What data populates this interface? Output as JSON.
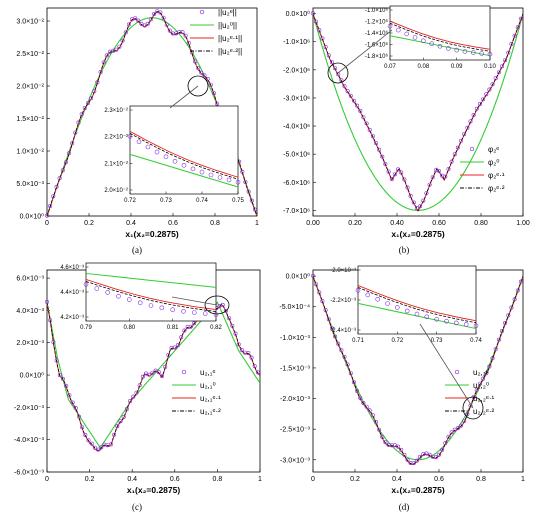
{
  "panels": [
    {
      "caption": "(a)",
      "xlabel": "x₁(x₂=0.2875)",
      "legend": [
        "||u₂ᵉ||",
        "||u₂⁰||",
        "||u₂ᵉ·¹||",
        "||u₂ᵉ·²||"
      ],
      "inset_xticks": [
        "0.72",
        "0.73",
        "0.74",
        "0.75"
      ],
      "inset_yticks": [
        "2.3×10⁻²",
        "2.2×10⁻²",
        "2.1×10⁻²",
        "2.0×10⁻²"
      ]
    },
    {
      "caption": "(b)",
      "xlabel": "x₁(x₂=0.2875)",
      "legend": [
        "φ₂ᵉ",
        "φ₂⁰",
        "φ₂ᵉ·¹",
        "φ₂ᵉ·²"
      ],
      "inset_xticks": [
        "0.07",
        "0.08",
        "0.09",
        "0.10"
      ],
      "inset_yticks": [
        "-1.0×10⁶",
        "-1.2×10⁶",
        "-1.4×10⁶",
        "-1.6×10⁶",
        "-1.8×10⁶"
      ]
    },
    {
      "caption": "(c)",
      "xlabel": "x₁(x₂=0.2875)",
      "legend": [
        "u₂,₁ᵉ",
        "u₂,₁⁰",
        "u₂,₁ᵉ·¹",
        "u₂,₁ᵉ·²"
      ],
      "inset_xticks": [
        "0.79",
        "0.80",
        "0.81",
        "0.82"
      ],
      "inset_yticks": [
        "4.6×10⁻³",
        "4.4×10⁻³",
        "4.2×10⁻³"
      ]
    },
    {
      "caption": "(d)",
      "xlabel": "x₁(x₂=0.2875)",
      "legend": [
        "u₂,₂ᵉ",
        "u₂,₂⁰",
        "u₂,₂ᵉ·¹",
        "u₂,₂ᵉ·²"
      ],
      "inset_xticks": [
        "0.71",
        "0.72",
        "0.73",
        "0.74"
      ],
      "inset_yticks": [
        "-2.0×10⁻³",
        "-2.2×10⁻³",
        "-2.4×10⁻³"
      ]
    }
  ],
  "colors": {
    "markers": "#8a2be2",
    "homogenized": "#33cc33",
    "first_order": "#e8251f",
    "second_order": "#000000"
  },
  "chart_data": [
    {
      "type": "line",
      "panel": "a",
      "xlabel": "x₁(x₂=0.2875)",
      "xlim": [
        0,
        1
      ],
      "ylim": [
        0,
        0.032
      ],
      "xticks": [
        "0",
        "0.2",
        "0.4",
        "0.6",
        "0.8",
        "1"
      ],
      "yticks": [
        "0.0×10⁰",
        "5.0×10⁻³",
        "1.0×10⁻²",
        "1.5×10⁻²",
        "2.0×10⁻²",
        "2.5×10⁻²",
        "3.0×10⁻²"
      ],
      "ytick_values": [
        0,
        0.005,
        0.01,
        0.015,
        0.02,
        0.025,
        0.03
      ],
      "xtick_values": [
        0,
        0.2,
        0.4,
        0.6,
        0.8,
        1.0
      ],
      "baseline": "sine",
      "peak": 0.0305,
      "osc_amp": 0.0011,
      "osc_count": 8,
      "legend": [
        "||u₂ᵉ||",
        "||u₂⁰||",
        "||u₂ᵉ·¹||",
        "||u₂ᵉ·²||"
      ],
      "legend_position": "top-right"
    },
    {
      "type": "line",
      "panel": "b",
      "xlabel": "x₁(x₂=0.2875)",
      "xlim": [
        0,
        1
      ],
      "ylim": [
        -7200000,
        200000
      ],
      "xticks": [
        "0.00",
        "0.20",
        "0.40",
        "0.60",
        "0.80",
        "1.00"
      ],
      "yticks": [
        "0.0×10⁰",
        "-1.0×10⁶",
        "-2.0×10⁶",
        "-3.0×10⁶",
        "-4.0×10⁶",
        "-5.0×10⁶",
        "-6.0×10⁶",
        "-7.0×10⁶"
      ],
      "ytick_values": [
        0,
        -1000000,
        -2000000,
        -3000000,
        -4000000,
        -5000000,
        -6000000,
        -7000000
      ],
      "xtick_values": [
        0,
        0.2,
        0.4,
        0.6,
        0.8,
        1.0
      ],
      "homogenized_min": -7000000,
      "fine_points": [
        [
          0,
          0
        ],
        [
          0.08,
          -1600000
        ],
        [
          0.15,
          -2600000
        ],
        [
          0.22,
          -3400000
        ],
        [
          0.28,
          -4300000
        ],
        [
          0.33,
          -5100000
        ],
        [
          0.375,
          -5900000
        ],
        [
          0.41,
          -5500000
        ],
        [
          0.44,
          -6000000
        ],
        [
          0.47,
          -6600000
        ],
        [
          0.5,
          -7000000
        ],
        [
          0.53,
          -6600000
        ],
        [
          0.56,
          -6000000
        ],
        [
          0.59,
          -5500000
        ],
        [
          0.625,
          -5900000
        ],
        [
          0.67,
          -5100000
        ],
        [
          0.72,
          -4300000
        ],
        [
          0.78,
          -3400000
        ],
        [
          0.85,
          -2600000
        ],
        [
          0.92,
          -1600000
        ],
        [
          1.0,
          0
        ]
      ],
      "legend": [
        "φ₂ᵉ",
        "φ₂⁰",
        "φ₂ᵉ·¹",
        "φ₂ᵉ·²"
      ],
      "legend_position": "right"
    },
    {
      "type": "line",
      "panel": "c",
      "xlabel": "x₁(x₂=0.2875)",
      "xlim": [
        0,
        1
      ],
      "ylim": [
        -0.006,
        0.0065
      ],
      "xticks": [
        "0",
        "0.2",
        "0.4",
        "0.6",
        "0.8",
        "1"
      ],
      "yticks": [
        "6.0×10⁻³",
        "4.0×10⁻³",
        "2.0×10⁻³",
        "0.0×10⁰",
        "-2.0×10⁻³",
        "-4.0×10⁻³",
        "-6.0×10⁻³"
      ],
      "ytick_values": [
        0.006,
        0.004,
        0.002,
        0,
        -0.002,
        -0.004,
        -0.006
      ],
      "xtick_values": [
        0,
        0.2,
        0.4,
        0.6,
        0.8,
        1.0
      ],
      "homogenized_points": [
        [
          0,
          0.0045
        ],
        [
          0.05,
          0.001
        ],
        [
          0.1,
          -0.0015
        ],
        [
          0.25,
          -0.0045
        ],
        [
          0.4,
          -0.0015
        ],
        [
          0.5,
          0.0
        ],
        [
          0.6,
          0.0015
        ],
        [
          0.8,
          0.0045
        ],
        [
          0.9,
          0.0015
        ],
        [
          1.0,
          -0.0005
        ]
      ],
      "fine_points": [
        [
          0,
          0.0045
        ],
        [
          0.03,
          0.002
        ],
        [
          0.06,
          0.0
        ],
        [
          0.1,
          -0.001
        ],
        [
          0.13,
          -0.002
        ],
        [
          0.16,
          -0.003
        ],
        [
          0.2,
          -0.0043
        ],
        [
          0.25,
          -0.0046
        ],
        [
          0.3,
          -0.0042
        ],
        [
          0.34,
          -0.003
        ],
        [
          0.38,
          -0.002
        ],
        [
          0.42,
          -0.001
        ],
        [
          0.46,
          0.0
        ],
        [
          0.5,
          0.0002
        ],
        [
          0.54,
          0.0
        ],
        [
          0.58,
          0.0015
        ],
        [
          0.62,
          0.002
        ],
        [
          0.66,
          0.003
        ],
        [
          0.7,
          0.0032
        ],
        [
          0.74,
          0.004
        ],
        [
          0.78,
          0.0042
        ],
        [
          0.82,
          0.0043
        ],
        [
          0.86,
          0.0035
        ],
        [
          0.9,
          0.0018
        ],
        [
          0.95,
          0.0012
        ],
        [
          1.0,
          0.0
        ]
      ],
      "legend": [
        "u₂,₁ᵉ",
        "u₂,₁⁰",
        "u₂,₁ᵉ·¹",
        "u₂,₁ᵉ·²"
      ],
      "legend_position": "bottom-right"
    },
    {
      "type": "line",
      "panel": "d",
      "xlabel": "x₁(x₂=0.2875)",
      "xlim": [
        0,
        1
      ],
      "ylim": [
        -0.0032,
        0.0001
      ],
      "xticks": [
        "0",
        "0.2",
        "0.4",
        "0.6",
        "0.8",
        "1"
      ],
      "yticks": [
        "0.0×10⁰",
        "-5.0×10⁻⁴",
        "-1.0×10⁻³",
        "-1.5×10⁻³",
        "-2.0×10⁻³",
        "-2.5×10⁻³",
        "-3.0×10⁻³"
      ],
      "ytick_values": [
        0,
        -0.0005,
        -0.001,
        -0.0015,
        -0.002,
        -0.0025,
        -0.003
      ],
      "xtick_values": [
        0,
        0.2,
        0.4,
        0.6,
        0.8,
        1.0
      ],
      "baseline": "sine",
      "peak": -0.003,
      "osc_amp": 8e-05,
      "osc_count": 8,
      "legend": [
        "u₂,₂ᵉ",
        "u₂,₂⁰",
        "u₂,₂ᵉ·¹",
        "u₂,₂ᵉ·²"
      ],
      "legend_position": "bottom-right"
    }
  ]
}
